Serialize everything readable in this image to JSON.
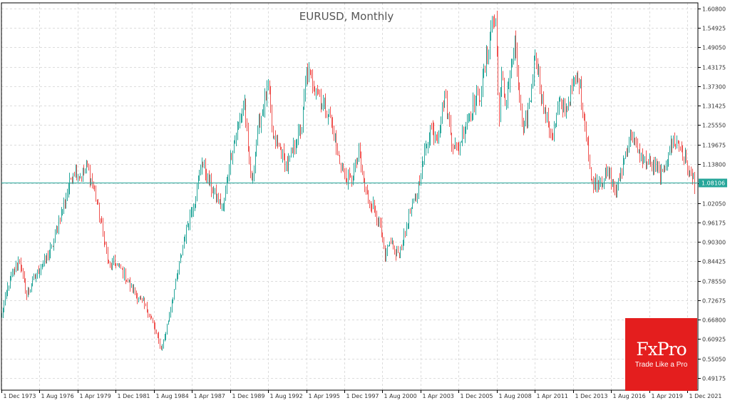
{
  "chart_data": {
    "type": "candlestick",
    "title": "EURUSD, Monthly",
    "xlabel": "",
    "ylabel": "",
    "ylim": [
      0.455,
      1.625
    ],
    "y_ticks": [
      "1.60800",
      "1.54925",
      "1.49050",
      "1.43175",
      "1.37300",
      "1.31425",
      "1.25550",
      "1.19675",
      "1.13800",
      "1.07925",
      "1.02050",
      "0.96175",
      "0.90300",
      "0.84425",
      "0.78550",
      "0.72675",
      "0.66800",
      "0.60925",
      "0.55050",
      "0.49175"
    ],
    "x_ticks": [
      "1 Dec 1973",
      "1 Aug 1976",
      "1 Apr 1979",
      "1 Dec 1981",
      "1 Aug 1984",
      "1 Apr 1987",
      "1 Dec 1989",
      "1 Aug 1992",
      "1 Apr 1995",
      "1 Dec 1997",
      "1 Aug 2000",
      "1 Apr 2003",
      "1 Dec 2005",
      "1 Aug 2008",
      "1 Apr 2011",
      "1 Dec 2013",
      "1 Aug 2016",
      "1 Apr 2019",
      "1 Dec 2021"
    ],
    "x_range": [
      "1973-12",
      "2022-06"
    ],
    "current_price": 1.08106,
    "current_price_label": "1.08106",
    "grid": true,
    "colors": {
      "up": "#26a69a",
      "down": "#ef5350",
      "price_line": "#26a69a",
      "grid": "#dcdcdc",
      "axis": "#000000"
    },
    "anchors": [
      [
        "1973-12",
        0.68
      ],
      [
        "1974-06",
        0.78
      ],
      [
        "1975-03",
        0.85
      ],
      [
        "1975-09",
        0.74
      ],
      [
        "1976-03",
        0.79
      ],
      [
        "1976-09",
        0.83
      ],
      [
        "1977-06",
        0.88
      ],
      [
        "1977-12",
        0.97
      ],
      [
        "1978-06",
        1.04
      ],
      [
        "1978-12",
        1.12
      ],
      [
        "1979-06",
        1.1
      ],
      [
        "1979-12",
        1.13
      ],
      [
        "1980-06",
        1.05
      ],
      [
        "1980-12",
        0.95
      ],
      [
        "1981-06",
        0.83
      ],
      [
        "1981-12",
        0.84
      ],
      [
        "1982-06",
        0.81
      ],
      [
        "1982-12",
        0.77
      ],
      [
        "1983-06",
        0.74
      ],
      [
        "1983-12",
        0.71
      ],
      [
        "1984-06",
        0.67
      ],
      [
        "1984-12",
        0.6
      ],
      [
        "1985-02",
        0.58
      ],
      [
        "1985-06",
        0.63
      ],
      [
        "1985-12",
        0.74
      ],
      [
        "1986-06",
        0.85
      ],
      [
        "1986-12",
        0.96
      ],
      [
        "1987-06",
        1.03
      ],
      [
        "1987-12",
        1.15
      ],
      [
        "1988-06",
        1.08
      ],
      [
        "1988-12",
        1.04
      ],
      [
        "1989-06",
        1.0
      ],
      [
        "1989-12",
        1.16
      ],
      [
        "1990-06",
        1.24
      ],
      [
        "1990-12",
        1.33
      ],
      [
        "1991-03",
        1.17
      ],
      [
        "1991-06",
        1.08
      ],
      [
        "1991-12",
        1.26
      ],
      [
        "1992-08",
        1.37
      ],
      [
        "1992-12",
        1.21
      ],
      [
        "1993-06",
        1.18
      ],
      [
        "1993-12",
        1.13
      ],
      [
        "1994-06",
        1.2
      ],
      [
        "1994-12",
        1.25
      ],
      [
        "1995-04",
        1.42
      ],
      [
        "1995-12",
        1.37
      ],
      [
        "1996-06",
        1.32
      ],
      [
        "1996-12",
        1.28
      ],
      [
        "1997-06",
        1.17
      ],
      [
        "1997-12",
        1.1
      ],
      [
        "1998-06",
        1.09
      ],
      [
        "1998-12",
        1.17
      ],
      [
        "1999-06",
        1.05
      ],
      [
        "1999-12",
        1.01
      ],
      [
        "2000-06",
        0.95
      ],
      [
        "2000-10",
        0.85
      ],
      [
        "2001-03",
        0.91
      ],
      [
        "2001-07",
        0.86
      ],
      [
        "2001-12",
        0.89
      ],
      [
        "2002-06",
        0.98
      ],
      [
        "2002-12",
        1.04
      ],
      [
        "2003-06",
        1.15
      ],
      [
        "2003-12",
        1.25
      ],
      [
        "2004-06",
        1.22
      ],
      [
        "2004-12",
        1.35
      ],
      [
        "2005-06",
        1.21
      ],
      [
        "2005-11",
        1.18
      ],
      [
        "2006-06",
        1.27
      ],
      [
        "2006-12",
        1.32
      ],
      [
        "2007-06",
        1.35
      ],
      [
        "2007-12",
        1.47
      ],
      [
        "2008-04",
        1.58
      ],
      [
        "2008-07",
        1.57
      ],
      [
        "2008-10",
        1.27
      ],
      [
        "2008-12",
        1.4
      ],
      [
        "2009-03",
        1.32
      ],
      [
        "2009-11",
        1.5
      ],
      [
        "2010-06",
        1.22
      ],
      [
        "2010-12",
        1.34
      ],
      [
        "2011-04",
        1.48
      ],
      [
        "2011-12",
        1.29
      ],
      [
        "2012-07",
        1.22
      ],
      [
        "2012-12",
        1.32
      ],
      [
        "2013-06",
        1.3
      ],
      [
        "2013-12",
        1.38
      ],
      [
        "2014-05",
        1.39
      ],
      [
        "2014-12",
        1.21
      ],
      [
        "2015-03",
        1.08
      ],
      [
        "2015-12",
        1.09
      ],
      [
        "2016-06",
        1.11
      ],
      [
        "2016-12",
        1.05
      ],
      [
        "2017-06",
        1.14
      ],
      [
        "2018-01",
        1.24
      ],
      [
        "2018-06",
        1.17
      ],
      [
        "2019-06",
        1.13
      ],
      [
        "2019-12",
        1.12
      ],
      [
        "2020-03",
        1.1
      ],
      [
        "2020-08",
        1.18
      ],
      [
        "2021-01",
        1.21
      ],
      [
        "2021-06",
        1.19
      ],
      [
        "2021-12",
        1.13
      ],
      [
        "2022-03",
        1.1
      ],
      [
        "2022-06",
        1.08
      ]
    ]
  },
  "logo": {
    "name": "FxPro",
    "tagline": "Trade Like a Pro",
    "color": "#e41e1e"
  }
}
